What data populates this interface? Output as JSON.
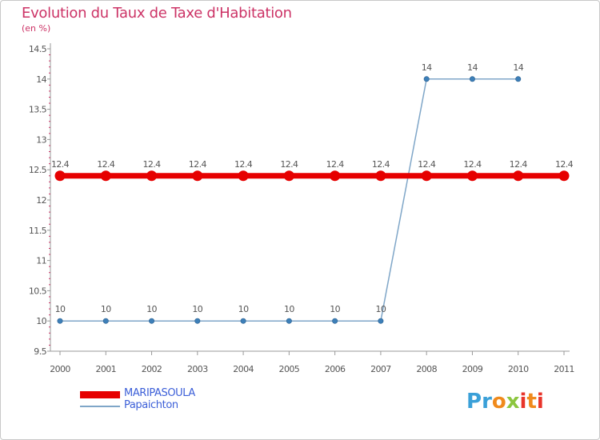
{
  "title": "Evolution du Taux de Taxe d'Habitation",
  "subtitle": "(en %)",
  "chart_data": {
    "type": "line",
    "title": "Evolution du Taux de Taxe d'Habitation",
    "ylabel": "(en %)",
    "xlabel": "",
    "x": [
      "2000",
      "2001",
      "2002",
      "2003",
      "2004",
      "2005",
      "2006",
      "2007",
      "2008",
      "2009",
      "2010",
      "2011"
    ],
    "ylim": [
      9.5,
      14.5
    ],
    "yticks": [
      "9.5",
      "10",
      "10.5",
      "11",
      "11.5",
      "12",
      "12.5",
      "13",
      "13.5",
      "14",
      "14.5"
    ],
    "series": [
      {
        "name": "MARIPASOULA",
        "color": "#e60000",
        "values": [
          12.4,
          12.4,
          12.4,
          12.4,
          12.4,
          12.4,
          12.4,
          12.4,
          12.4,
          12.4,
          12.4,
          12.4
        ],
        "labels": [
          "12.4",
          "12.4",
          "12.4",
          "12.4",
          "12.4",
          "12.4",
          "12.4",
          "12.4",
          "12.4",
          "12.4",
          "12.4",
          "12.4"
        ]
      },
      {
        "name": "Papaichton",
        "color": "#7fa6c8",
        "values": [
          10,
          10,
          10,
          10,
          10,
          10,
          10,
          10,
          14,
          14,
          14,
          null
        ],
        "labels": [
          "10",
          "10",
          "10",
          "10",
          "10",
          "10",
          "10",
          "10",
          "14",
          "14",
          "14",
          null
        ]
      }
    ],
    "legend_position": "bottom-left"
  },
  "legend": {
    "items": [
      {
        "label": "MARIPASOULA",
        "color": "#e60000"
      },
      {
        "label": "Papaichton",
        "color": "#7fa6c8"
      }
    ]
  },
  "logo": {
    "letters": [
      {
        "char": "P",
        "color": "#3aa0d8"
      },
      {
        "char": "r",
        "color": "#3aa0d8"
      },
      {
        "char": "o",
        "color": "#f08a1c"
      },
      {
        "char": "x",
        "color": "#8cc63f"
      },
      {
        "char": "i",
        "color": "#e8342a"
      },
      {
        "char": "t",
        "color": "#f08a1c"
      },
      {
        "char": "i",
        "color": "#e8342a"
      }
    ]
  }
}
